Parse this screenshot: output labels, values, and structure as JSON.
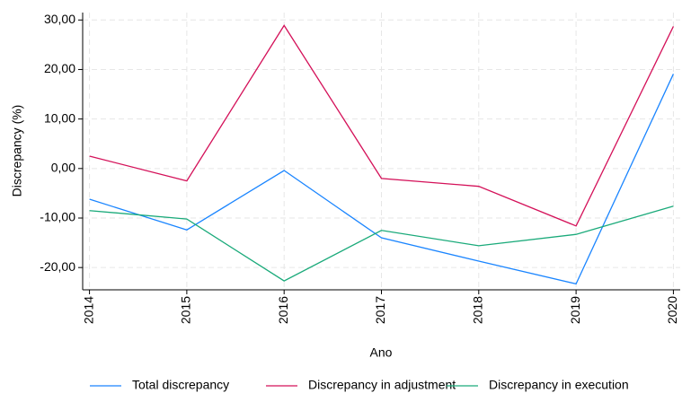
{
  "chart_data": {
    "type": "line",
    "x": [
      2014,
      2015,
      2016,
      2017,
      2018,
      2019,
      2020
    ],
    "xlim": [
      2013.93,
      2020.07
    ],
    "xticks": [
      2014,
      2015,
      2016,
      2017,
      2018,
      2019,
      2020
    ],
    "ylim": [
      -24.5,
      31.5
    ],
    "yticks": [
      {
        "value": -20,
        "label": "-20,00"
      },
      {
        "value": -10,
        "label": "-10,00"
      },
      {
        "value": 0,
        "label": "0,00"
      },
      {
        "value": 10,
        "label": "10,00"
      },
      {
        "value": 20,
        "label": "20,00"
      },
      {
        "value": 30,
        "label": "30,00"
      }
    ],
    "x_label": "Ano",
    "y_label": "Discrepancy (%)",
    "grid": true,
    "legend": "bottom",
    "series": [
      {
        "name": "Total discrepancy",
        "color": "#1a85ff",
        "values": [
          -6.2,
          -12.4,
          -0.4,
          -14.0,
          -18.7,
          -23.3,
          19.1
        ]
      },
      {
        "name": "Discrepancy in adjustment",
        "color": "#d41159",
        "values": [
          2.5,
          -2.5,
          28.9,
          -2.0,
          -3.6,
          -11.6,
          28.7
        ]
      },
      {
        "name": "Discrepancy in execution",
        "color": "#1aaa7a",
        "values": [
          -8.5,
          -10.2,
          -22.7,
          -12.5,
          -15.6,
          -13.3,
          -7.6
        ]
      }
    ]
  }
}
